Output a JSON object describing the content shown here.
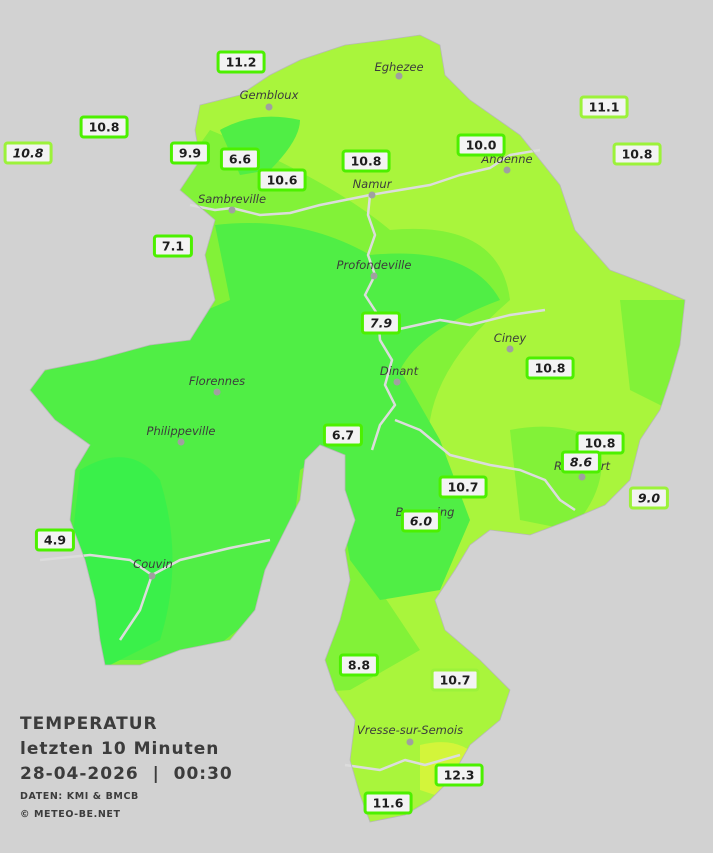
{
  "legend": {
    "title": "TEMPERATUR",
    "period": "letzten 10 Minuten",
    "datetime": "28-04-2026  |  00:30",
    "sources": "DATEN: KMI & BMCB",
    "copyright": "© METEO-BE.NET"
  },
  "towns": [
    {
      "id": "eghezee",
      "name": "Eghezee"
    },
    {
      "id": "gembloux",
      "name": "Gembloux"
    },
    {
      "id": "andenne",
      "name": "Andenne"
    },
    {
      "id": "namur",
      "name": "Namur"
    },
    {
      "id": "sambreville",
      "name": "Sambreville"
    },
    {
      "id": "profondeville",
      "name": "Profondeville"
    },
    {
      "id": "ciney",
      "name": "Ciney"
    },
    {
      "id": "dinant",
      "name": "Dinant"
    },
    {
      "id": "florennes",
      "name": "Florennes"
    },
    {
      "id": "philippeville",
      "name": "Philippeville"
    },
    {
      "id": "rochefort",
      "name": "Rochefort"
    },
    {
      "id": "beauraing",
      "name": "Beauraing"
    },
    {
      "id": "couvin",
      "name": "Couvin"
    },
    {
      "id": "vresse",
      "name": "Vresse-sur-Semois"
    }
  ],
  "stations": [
    {
      "id": "s01",
      "value": "11.2",
      "italic": false
    },
    {
      "id": "s02",
      "value": "10.8",
      "italic": false
    },
    {
      "id": "s03",
      "value": "10.8",
      "italic": true
    },
    {
      "id": "s04",
      "value": "9.9",
      "italic": false
    },
    {
      "id": "s05",
      "value": "6.6",
      "italic": false
    },
    {
      "id": "s06",
      "value": "10.6",
      "italic": false
    },
    {
      "id": "s07",
      "value": "10.8",
      "italic": false
    },
    {
      "id": "s08",
      "value": "10.0",
      "italic": false
    },
    {
      "id": "s09",
      "value": "11.1",
      "italic": false
    },
    {
      "id": "s10",
      "value": "10.8",
      "italic": false
    },
    {
      "id": "s11",
      "value": "7.1",
      "italic": false
    },
    {
      "id": "s12",
      "value": "7.9",
      "italic": true
    },
    {
      "id": "s13",
      "value": "10.8",
      "italic": false
    },
    {
      "id": "s14",
      "value": "6.7",
      "italic": false
    },
    {
      "id": "s15",
      "value": "10.8",
      "italic": false
    },
    {
      "id": "s16",
      "value": "8.6",
      "italic": true
    },
    {
      "id": "s17",
      "value": "10.7",
      "italic": false
    },
    {
      "id": "s18",
      "value": "9.0",
      "italic": true
    },
    {
      "id": "s19",
      "value": "6.0",
      "italic": true
    },
    {
      "id": "s20",
      "value": "4.9",
      "italic": false
    },
    {
      "id": "s21",
      "value": "8.8",
      "italic": false
    },
    {
      "id": "s22",
      "value": "10.7",
      "italic": false
    },
    {
      "id": "s23",
      "value": "12.3",
      "italic": false
    },
    {
      "id": "s24",
      "value": "11.6",
      "italic": false
    }
  ],
  "colors": {
    "background": "#d2d2d2",
    "region_warm": "#a9f53c",
    "region_mid": "#82f238",
    "region_cool": "#50ee45",
    "region_cold": "#3af04a",
    "rivers": "#dcdcdc",
    "box_border": "#4cf000"
  }
}
